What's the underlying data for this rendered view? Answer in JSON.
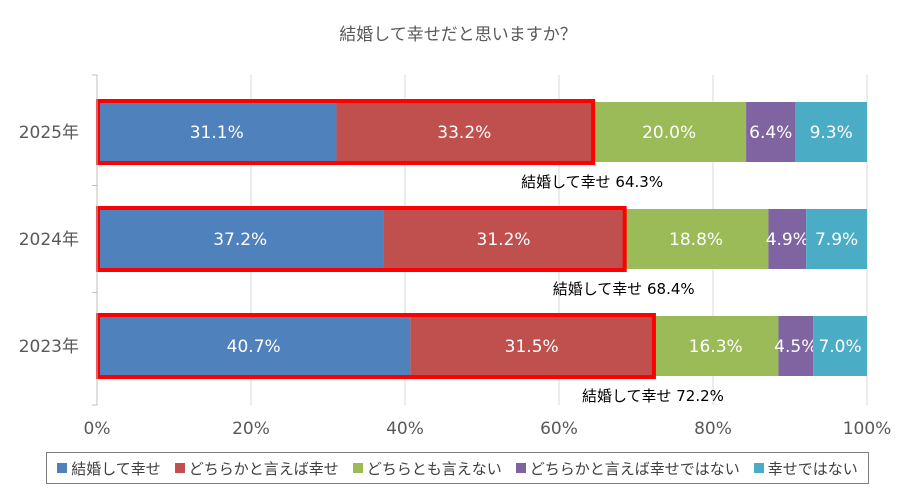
{
  "chart_data": {
    "type": "bar",
    "orientation": "horizontal",
    "stacked": true,
    "title": "結婚して幸せだと思いますか？",
    "categories": [
      "2025年",
      "2024年",
      "2023年"
    ],
    "series": [
      {
        "name": "結婚して幸せ",
        "color": "#4f81bd",
        "values": [
          31.1,
          37.2,
          40.7
        ],
        "labels": [
          "31.1%",
          "37.2%",
          "40.7%"
        ]
      },
      {
        "name": "どちらかと言えば幸せ",
        "color": "#c0504d",
        "values": [
          33.2,
          31.2,
          31.5
        ],
        "labels": [
          "33.2%",
          "31.2%",
          "31.5%"
        ]
      },
      {
        "name": "どちらとも言えない",
        "color": "#9bbb59",
        "values": [
          20.0,
          18.8,
          16.3
        ],
        "labels": [
          "20.0%",
          "18.8%",
          "16.3%"
        ]
      },
      {
        "name": "どちらかと言えば幸せではない",
        "color": "#8064a2",
        "values": [
          6.4,
          4.9,
          4.5
        ],
        "labels": [
          "6.4%",
          "4.9%",
          "4.5%"
        ]
      },
      {
        "name": "幸せではない",
        "color": "#4bacc6",
        "values": [
          9.3,
          7.9,
          7.0
        ],
        "labels": [
          "9.3%",
          "7.9%",
          "7.0%"
        ]
      }
    ],
    "xlim": [
      0,
      100
    ],
    "xticks": [
      "0%",
      "20%",
      "40%",
      "60%",
      "80%",
      "100%"
    ],
    "legend_position": "bottom",
    "annotations": [
      {
        "category": "2025年",
        "text": "結婚して幸せ  64.3%",
        "value": 64.3
      },
      {
        "category": "2024年",
        "text": "結婚して幸せ  68.4%",
        "value": 68.4
      },
      {
        "category": "2023年",
        "text": "結婚して幸せ  72.2%",
        "value": 72.2
      }
    ],
    "highlight_color": "#ff0000"
  }
}
